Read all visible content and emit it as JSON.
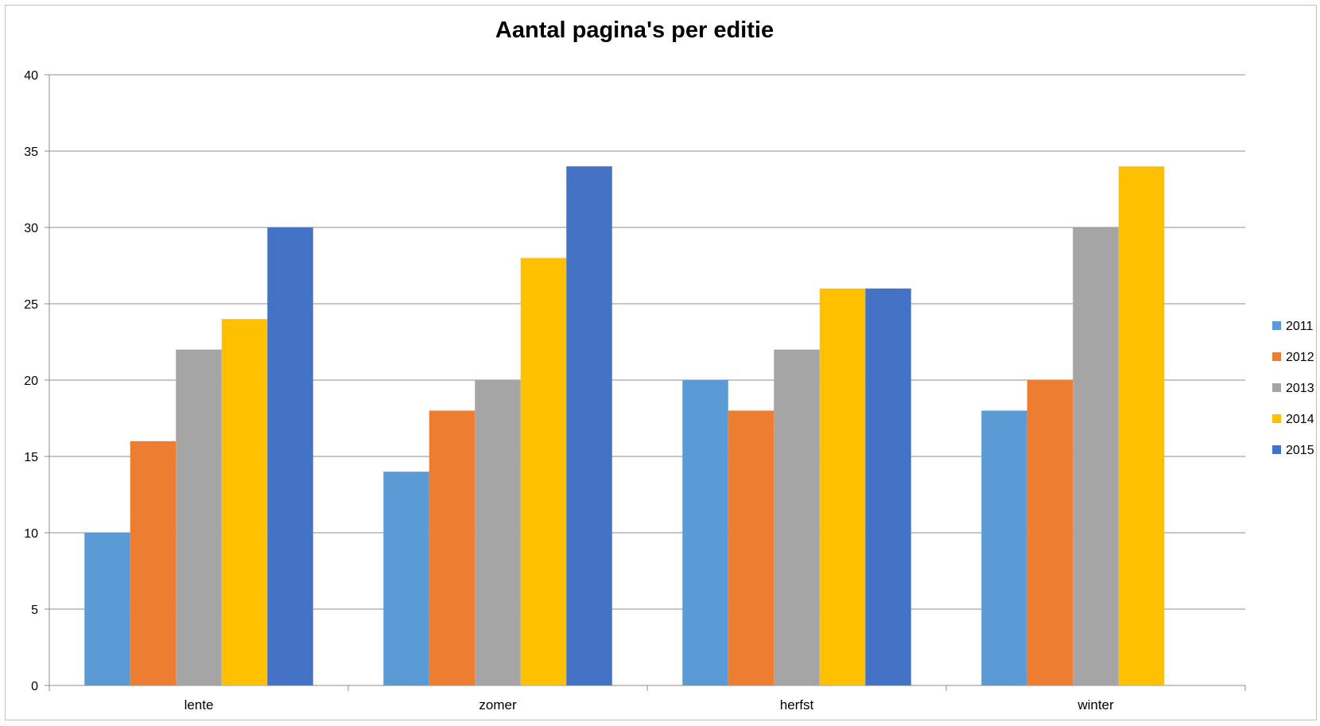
{
  "chart_data": {
    "type": "bar",
    "title": "Aantal pagina's per editie",
    "categories": [
      "lente",
      "zomer",
      "herfst",
      "winter"
    ],
    "series": [
      {
        "name": "2011",
        "color": "#5B9BD5",
        "values": [
          10,
          14,
          20,
          18
        ]
      },
      {
        "name": "2012",
        "color": "#ED7D31",
        "values": [
          16,
          18,
          18,
          20
        ]
      },
      {
        "name": "2013",
        "color": "#A5A5A5",
        "values": [
          22,
          20,
          22,
          30
        ]
      },
      {
        "name": "2014",
        "color": "#FFC000",
        "values": [
          24,
          28,
          26,
          34
        ]
      },
      {
        "name": "2015",
        "color": "#4472C4",
        "values": [
          30,
          34,
          26,
          null
        ]
      }
    ],
    "ylim": [
      0,
      40
    ],
    "yticks": [
      0,
      5,
      10,
      15,
      20,
      25,
      30,
      35,
      40
    ],
    "grid": true,
    "legend": "right"
  }
}
